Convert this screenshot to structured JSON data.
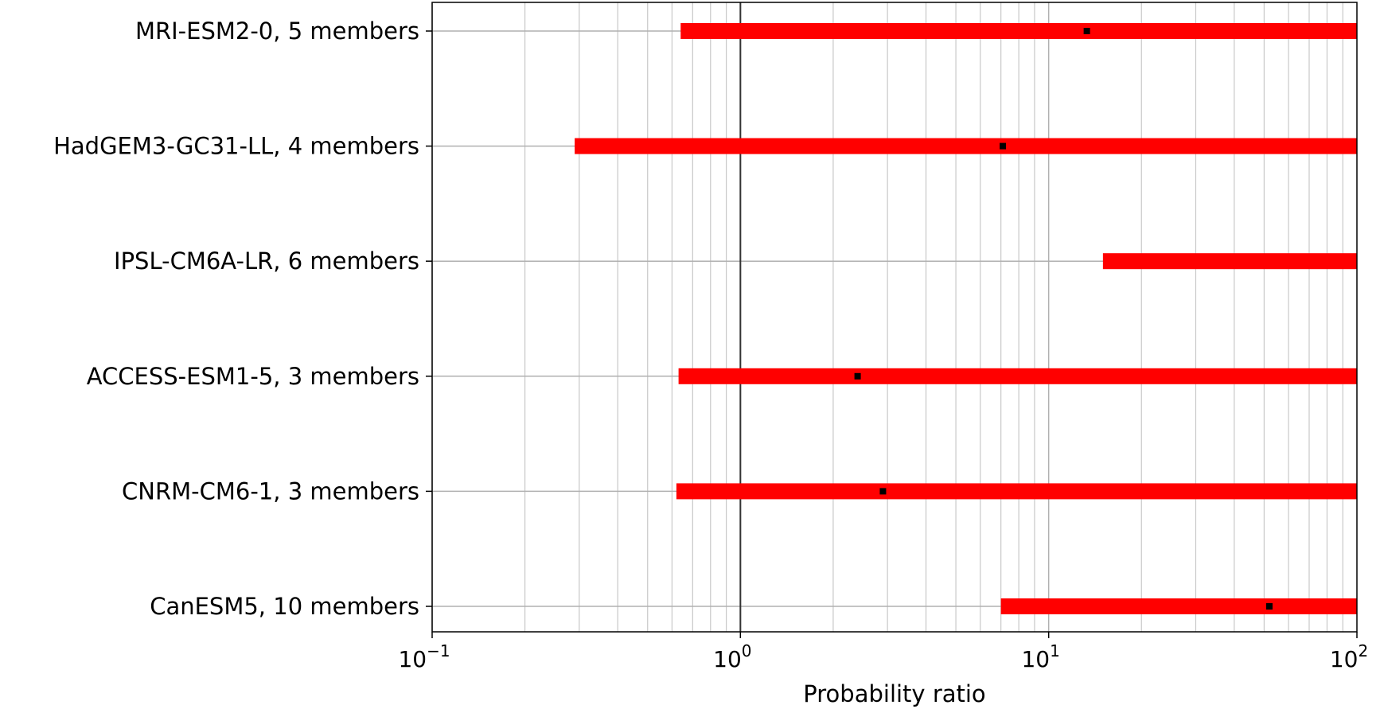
{
  "chart_data": {
    "type": "interval",
    "xlabel": "Probability ratio",
    "xscale": "log",
    "xlim": [
      0.1,
      100
    ],
    "x_ticks": [
      {
        "base": "10",
        "exp": "−1"
      },
      {
        "base": "10",
        "exp": "0"
      },
      {
        "base": "10",
        "exp": "1"
      },
      {
        "base": "10",
        "exp": "2"
      }
    ],
    "reference_line": 1,
    "grid": true,
    "bar_color": "#ff0000",
    "point_color": "#000000",
    "categories": [
      "MRI-ESM2-0, 5 members",
      "HadGEM3-GC31-LL, 4 members",
      "IPSL-CM6A-LR, 6 members",
      "ACCESS-ESM1-5, 3 members",
      "CNRM-CM6-1, 3 members",
      "CanESM5, 10 members"
    ],
    "low": [
      0.64,
      0.29,
      15,
      0.63,
      0.62,
      7
    ],
    "best": [
      13.3,
      7.1,
      null,
      2.4,
      2.9,
      52
    ],
    "high": [
      100,
      100,
      100,
      100,
      100,
      100
    ]
  }
}
